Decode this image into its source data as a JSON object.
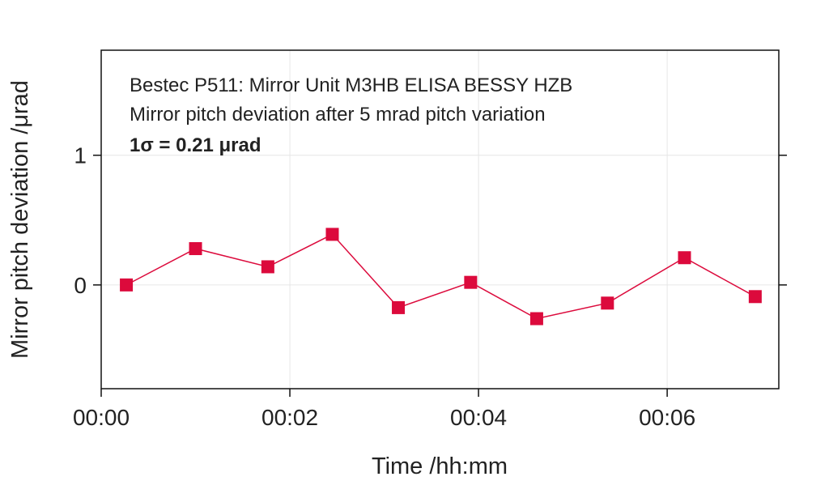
{
  "chart_data": {
    "type": "line",
    "annotation_lines": [
      "Bestec P511: Mirror Unit M3HB ELISA BESSY HZB",
      "Mirror pitch deviation after 5 mrad pitch variation",
      "1σ = 0.21 μrad"
    ],
    "xlabel": "Time /hh:mm",
    "ylabel": "Mirror pitch deviation /μrad",
    "x_ticks": [
      "00:00",
      "00:02",
      "00:04",
      "00:06"
    ],
    "y_ticks": [
      0,
      1
    ],
    "xlim": [
      "00:00:00",
      "00:07:11"
    ],
    "ylim": [
      -0.8,
      1.81
    ],
    "grid": true,
    "marker": "square",
    "color": "#dc0a3c",
    "series": [
      {
        "x": [
          "00:00:16",
          "00:01:00",
          "00:01:46",
          "00:02:27",
          "00:03:09",
          "00:03:55",
          "00:04:37",
          "00:05:22",
          "00:06:11",
          "00:06:56"
        ],
        "y": [
          0.0,
          0.28,
          0.14,
          0.39,
          -0.175,
          0.02,
          -0.26,
          -0.14,
          0.21,
          -0.09
        ]
      }
    ]
  }
}
